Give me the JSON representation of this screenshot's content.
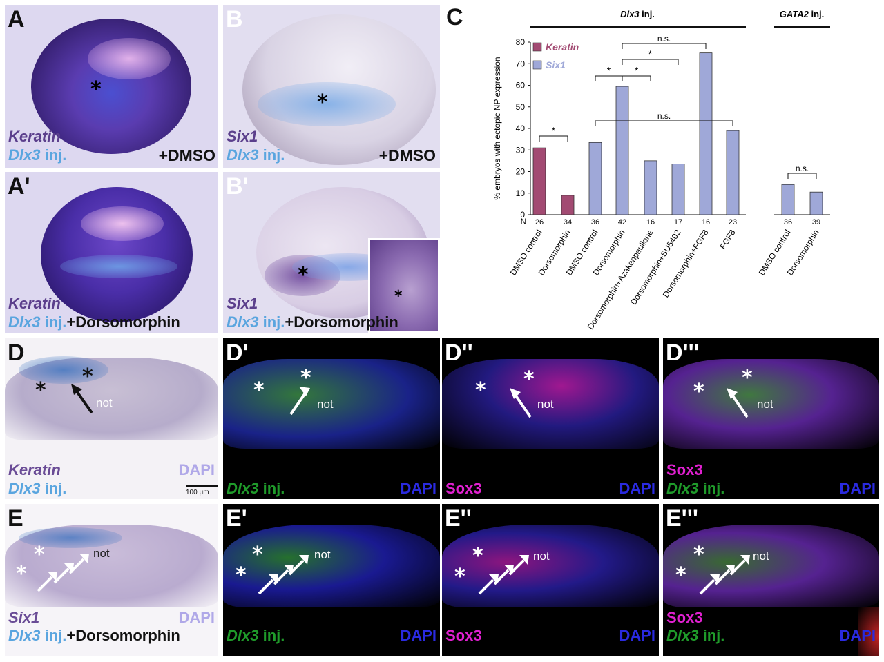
{
  "panels": {
    "A": {
      "letter": "A",
      "gene": "Keratin",
      "inj_gene": "Dlx3",
      "inj": " inj.",
      "treatment": "+DMSO",
      "star": "*"
    },
    "A2": {
      "letter": "A'",
      "gene": "Keratin",
      "inj_gene": "Dlx3",
      "inj": " inj.",
      "treatment": "+Dorsomorphin"
    },
    "B": {
      "letter": "B",
      "gene": "Six1",
      "inj_gene": "Dlx3",
      "inj": " inj.",
      "treatment": "+DMSO",
      "star": "*"
    },
    "B2": {
      "letter": "B'",
      "gene": "Six1",
      "inj_gene": "Dlx3",
      "inj": " inj.",
      "treatment": "+Dorsomorphin",
      "star": "*"
    },
    "C": {
      "letter": "C"
    },
    "D": {
      "letter": "D",
      "gene": "Keratin",
      "inj_gene": "Dlx3",
      "inj": " inj.",
      "dapi": "DAPI",
      "not": "not",
      "scale": "100 μm",
      "star": "*"
    },
    "D1": {
      "letter": "D'",
      "inj_gene": "Dlx3",
      "inj": " inj.",
      "dapi": "DAPI",
      "not": "not"
    },
    "D2": {
      "letter": "D''",
      "sox": "Sox3",
      "dapi": "DAPI",
      "not": "not"
    },
    "D3": {
      "letter": "D'''",
      "sox": "Sox3",
      "inj_gene": "Dlx3",
      "inj": " inj.",
      "dapi": "DAPI",
      "not": "not"
    },
    "E": {
      "letter": "E",
      "gene": "Six1",
      "inj_gene": "Dlx3",
      "inj": " inj.",
      "treatment": "+Dorsomorphin",
      "dapi": "DAPI",
      "not": "not"
    },
    "E1": {
      "letter": "E'",
      "inj_gene": "Dlx3",
      "inj": " inj.",
      "dapi": "DAPI",
      "not": "not"
    },
    "E2": {
      "letter": "E''",
      "sox": "Sox3",
      "dapi": "DAPI",
      "not": "not"
    },
    "E3": {
      "letter": "E'''",
      "sox": "Sox3",
      "inj_gene": "Dlx3",
      "inj": " inj.",
      "dapi": "DAPI",
      "not": "not"
    }
  },
  "colors": {
    "keratin": "#a24a72",
    "six1": "#9fa8d8",
    "purple_text": "#5b3f8c",
    "blue_text": "#5aa5df",
    "green_text": "#1f9a2a",
    "magenta_text": "#e020d0",
    "dapi_text": "#2a2adf",
    "dapi_light": "#b0a8e8"
  },
  "chart_data": {
    "type": "bar",
    "group_labels": [
      {
        "gene": "Dlx3",
        "suffix": " inj."
      },
      {
        "gene": "GATA2",
        "suffix": " inj."
      }
    ],
    "ylabel": "% embryos with ectopic NP expression",
    "ylim": [
      0,
      80
    ],
    "yticks": [
      0,
      10,
      20,
      30,
      40,
      50,
      60,
      70,
      80
    ],
    "n_label": "N",
    "legend": [
      {
        "name": "Keratin",
        "color": "#a24a72"
      },
      {
        "name": "Six1",
        "color": "#9fa8d8"
      }
    ],
    "bars": [
      {
        "label": "DMSO control",
        "n": "26",
        "value": 31,
        "series": "Keratin"
      },
      {
        "label": "Dorsomorphin",
        "n": "34",
        "value": 9,
        "series": "Keratin"
      },
      {
        "label": "DMSO control",
        "n": "36",
        "value": 33.5,
        "series": "Six1"
      },
      {
        "label": "Dorsomorphin",
        "n": "42",
        "value": 59.5,
        "series": "Six1"
      },
      {
        "label": "Dorsomorphin+Azakenpaullone",
        "n": "16",
        "value": 25,
        "series": "Six1"
      },
      {
        "label": "Dorsomorphin+SU5402",
        "n": "17",
        "value": 23.5,
        "series": "Six1"
      },
      {
        "label": "Dorsomorphin+FGF8",
        "n": "16",
        "value": 75,
        "series": "Six1"
      },
      {
        "label": "FGF8",
        "n": "23",
        "value": 39,
        "series": "Six1"
      },
      {
        "label": "DMSO control",
        "n": "36",
        "value": 14,
        "series": "Six1"
      },
      {
        "label": "Dorsomorphin",
        "n": "39",
        "value": 10.5,
        "series": "Six1"
      }
    ],
    "significance": [
      {
        "from": 0,
        "to": 1,
        "label": "*"
      },
      {
        "from": 2,
        "to": 3,
        "label": "*"
      },
      {
        "from": 3,
        "to": 4,
        "label": "*"
      },
      {
        "from": 3,
        "to": 5,
        "label": "*"
      },
      {
        "from": 3,
        "to": 6,
        "label": "n.s."
      },
      {
        "from": 2,
        "to": 7,
        "label": "n.s."
      },
      {
        "from": 8,
        "to": 9,
        "label": "n.s."
      }
    ]
  }
}
